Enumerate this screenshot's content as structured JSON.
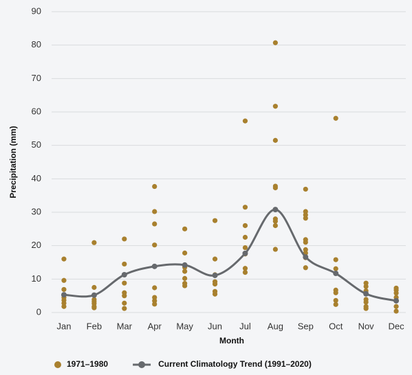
{
  "chart_data": {
    "type": "scatter",
    "x_label": "Month",
    "y_label": "Precipitation (mm)",
    "categories": [
      "Jan",
      "Feb",
      "Mar",
      "Apr",
      "May",
      "Jun",
      "Jul",
      "Aug",
      "Sep",
      "Oct",
      "Nov",
      "Dec"
    ],
    "series": [
      {
        "name": "1971–1980",
        "type": "scatter",
        "color": "#a8802e",
        "values": [
          [
            16,
            9.6,
            6.9,
            4.5,
            3.7,
            2.8,
            1.8
          ],
          [
            20.9,
            7.5,
            3.9,
            3.3,
            2.7,
            1.8,
            1.4
          ],
          [
            22,
            14.5,
            8.8,
            5.9,
            5,
            2.8,
            1.2
          ],
          [
            37.7,
            30.2,
            26.5,
            20.2,
            7.4,
            4.5,
            3.5,
            2.5
          ],
          [
            25,
            17.8,
            13.5,
            12.3,
            10.2,
            8.7,
            8
          ],
          [
            27.5,
            16,
            11.3,
            9.2,
            8.5,
            6.3,
            5.5
          ],
          [
            57.3,
            31.5,
            26,
            22.5,
            19.4,
            17.5,
            13.2,
            12
          ],
          [
            80.7,
            61.7,
            51.5,
            37.8,
            37.3,
            30.8,
            28,
            27.3,
            26,
            18.9
          ],
          [
            36.9,
            30.2,
            29.2,
            28.2,
            21.8,
            21,
            18.8,
            17.8,
            16.4,
            13.4
          ],
          [
            58.1,
            15.8,
            13.1,
            6.7,
            5.9,
            3.6,
            2.4
          ],
          [
            8.8,
            7.8,
            6.5,
            3.9,
            3.1,
            1.8,
            1.2
          ],
          [
            7.3,
            6.7,
            5.8,
            4.5,
            3.6,
            1.8,
            0.4
          ]
        ]
      },
      {
        "name": "Current Climatology Trend (1991–2020)",
        "type": "line",
        "color": "#66696d",
        "values": [
          5.3,
          5.2,
          11.3,
          13.8,
          14.2,
          11.1,
          17.7,
          30.8,
          16.6,
          11.7,
          5.6,
          3.5
        ]
      }
    ],
    "ylim": [
      0,
      90
    ],
    "yticks": [
      0,
      10,
      20,
      30,
      40,
      50,
      60,
      70,
      80,
      90
    ],
    "grid": true,
    "legend": "bottom"
  }
}
